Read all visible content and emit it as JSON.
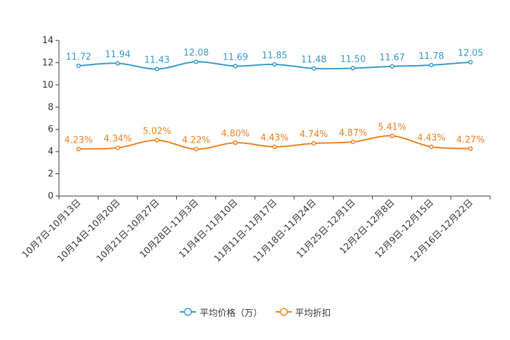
{
  "chart_data": {
    "type": "line",
    "categories": [
      "10月7日-10月13日",
      "10月14日-10月20日",
      "10月21日-10月27日",
      "10月28日-11月3日",
      "11月4日-11月10日",
      "11月11日-11月17日",
      "11月18日-11月24日",
      "11月25日-12月1日",
      "12月2日-12月8日",
      "12月9日-12月15日",
      "12月16日-12月22日"
    ],
    "y_ticks": [
      "0",
      "2",
      "4",
      "6",
      "8",
      "10",
      "12",
      "14"
    ],
    "ylim": [
      0,
      14
    ],
    "series": [
      {
        "name": "平均价格（万）",
        "color": "#3399cc",
        "values": [
          11.72,
          11.94,
          11.43,
          12.08,
          11.69,
          11.85,
          11.48,
          11.5,
          11.67,
          11.78,
          12.05
        ],
        "labels": [
          "11.72",
          "11.94",
          "11.43",
          "12.08",
          "11.69",
          "11.85",
          "11.48",
          "11.50",
          "11.67",
          "11.78",
          "12.05"
        ]
      },
      {
        "name": "平均折扣",
        "color": "#f07f1e",
        "values": [
          4.23,
          4.34,
          5.02,
          4.22,
          4.8,
          4.43,
          4.74,
          4.87,
          5.41,
          4.43,
          4.27
        ],
        "labels": [
          "4.23%",
          "4.34%",
          "5.02%",
          "4.22%",
          "4.80%",
          "4.43%",
          "4.74%",
          "4.87%",
          "5.41%",
          "4.43%",
          "4.27%"
        ]
      }
    ]
  }
}
